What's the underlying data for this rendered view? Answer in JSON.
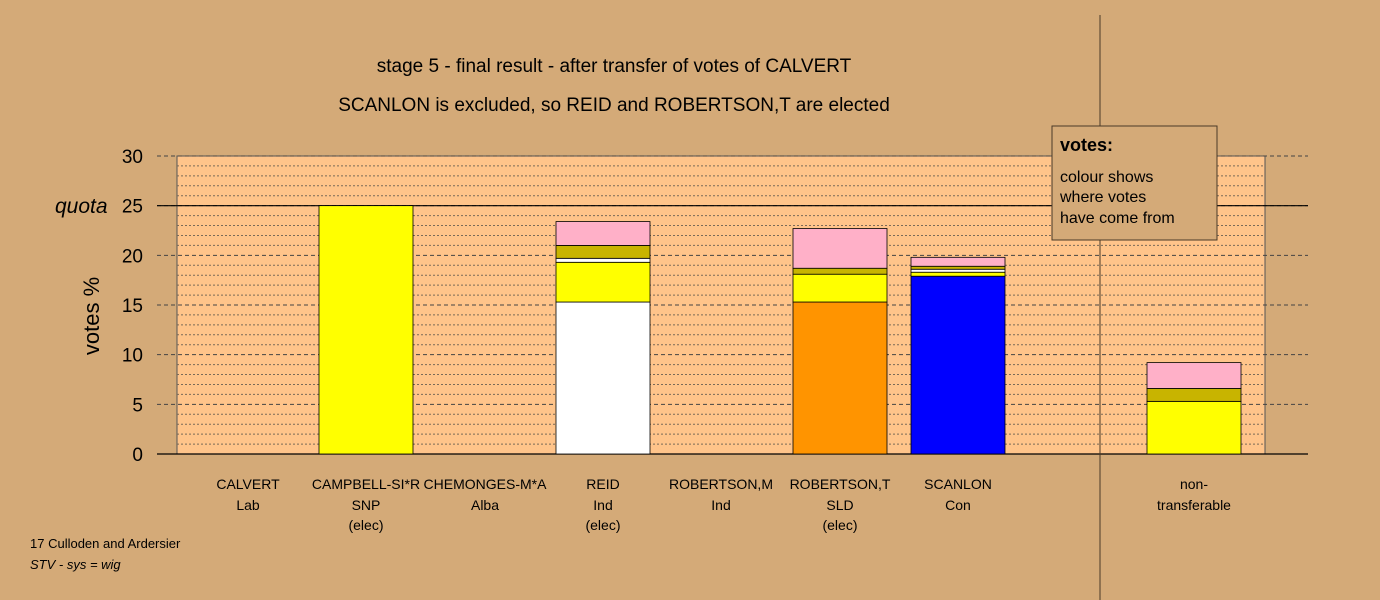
{
  "chart_data": {
    "type": "bar",
    "stacked": true,
    "title": "stage 5 - final result - after transfer of votes of CALVERT",
    "subtitle": "SCANLON is excluded, so REID and ROBERTSON,T are elected",
    "ylabel": "votes %",
    "ylim": [
      0,
      30
    ],
    "yticks": [
      "0",
      "5",
      "10",
      "15",
      "20",
      "25",
      "30"
    ],
    "quota": {
      "label": "quota",
      "value": 25
    },
    "grid": true,
    "categories": [
      {
        "name": "CALVERT",
        "party": "Lab",
        "note": ""
      },
      {
        "name": "CAMPBELL-SI*R",
        "party": "SNP",
        "note": "(elec)"
      },
      {
        "name": "CHEMONGES-M*A",
        "party": "Alba",
        "note": ""
      },
      {
        "name": "REID",
        "party": "Ind",
        "note": "(elec)"
      },
      {
        "name": "ROBERTSON,M",
        "party": "Ind",
        "note": ""
      },
      {
        "name": "ROBERTSON,T",
        "party": "SLD",
        "note": "(elec)"
      },
      {
        "name": "SCANLON",
        "party": "Con",
        "note": ""
      }
    ],
    "stacks": [
      [],
      [
        {
          "value": 25.0,
          "color": "#ffff00"
        }
      ],
      [],
      [
        {
          "value": 15.3,
          "color": "#ffffff"
        },
        {
          "value": 4.0,
          "color": "#ffff00"
        },
        {
          "value": 0.4,
          "color": "#ffffff"
        },
        {
          "value": 1.3,
          "color": "#c8b400"
        },
        {
          "value": 2.4,
          "color": "#ffb0c8"
        }
      ],
      [],
      [
        {
          "value": 15.3,
          "color": "#ff9400"
        },
        {
          "value": 2.8,
          "color": "#ffff00"
        },
        {
          "value": 0.6,
          "color": "#c8b400"
        },
        {
          "value": 4.0,
          "color": "#ffb0c8"
        }
      ],
      [
        {
          "value": 17.9,
          "color": "#0000ff"
        },
        {
          "value": 0.4,
          "color": "#ffff00"
        },
        {
          "value": 0.3,
          "color": "#ffffff"
        },
        {
          "value": 0.3,
          "color": "#c8b400"
        },
        {
          "value": 0.9,
          "color": "#ffb0c8"
        }
      ]
    ],
    "nontransferable": {
      "label_line1": "non-",
      "label_line2": "transferable",
      "stack": [
        {
          "value": 5.3,
          "color": "#ffff00"
        },
        {
          "value": 1.3,
          "color": "#c8b400"
        },
        {
          "value": 2.6,
          "color": "#ffb0c8"
        }
      ]
    }
  },
  "legend": {
    "heading": "votes:",
    "lines": [
      "colour shows",
      "where votes",
      "have come from"
    ]
  },
  "footer": {
    "line1": "17 Culloden and Ardersier",
    "line2": "STV - sys = wig"
  },
  "colors": {
    "background": "#d4aa78",
    "plot_area": "#ffc48a"
  }
}
